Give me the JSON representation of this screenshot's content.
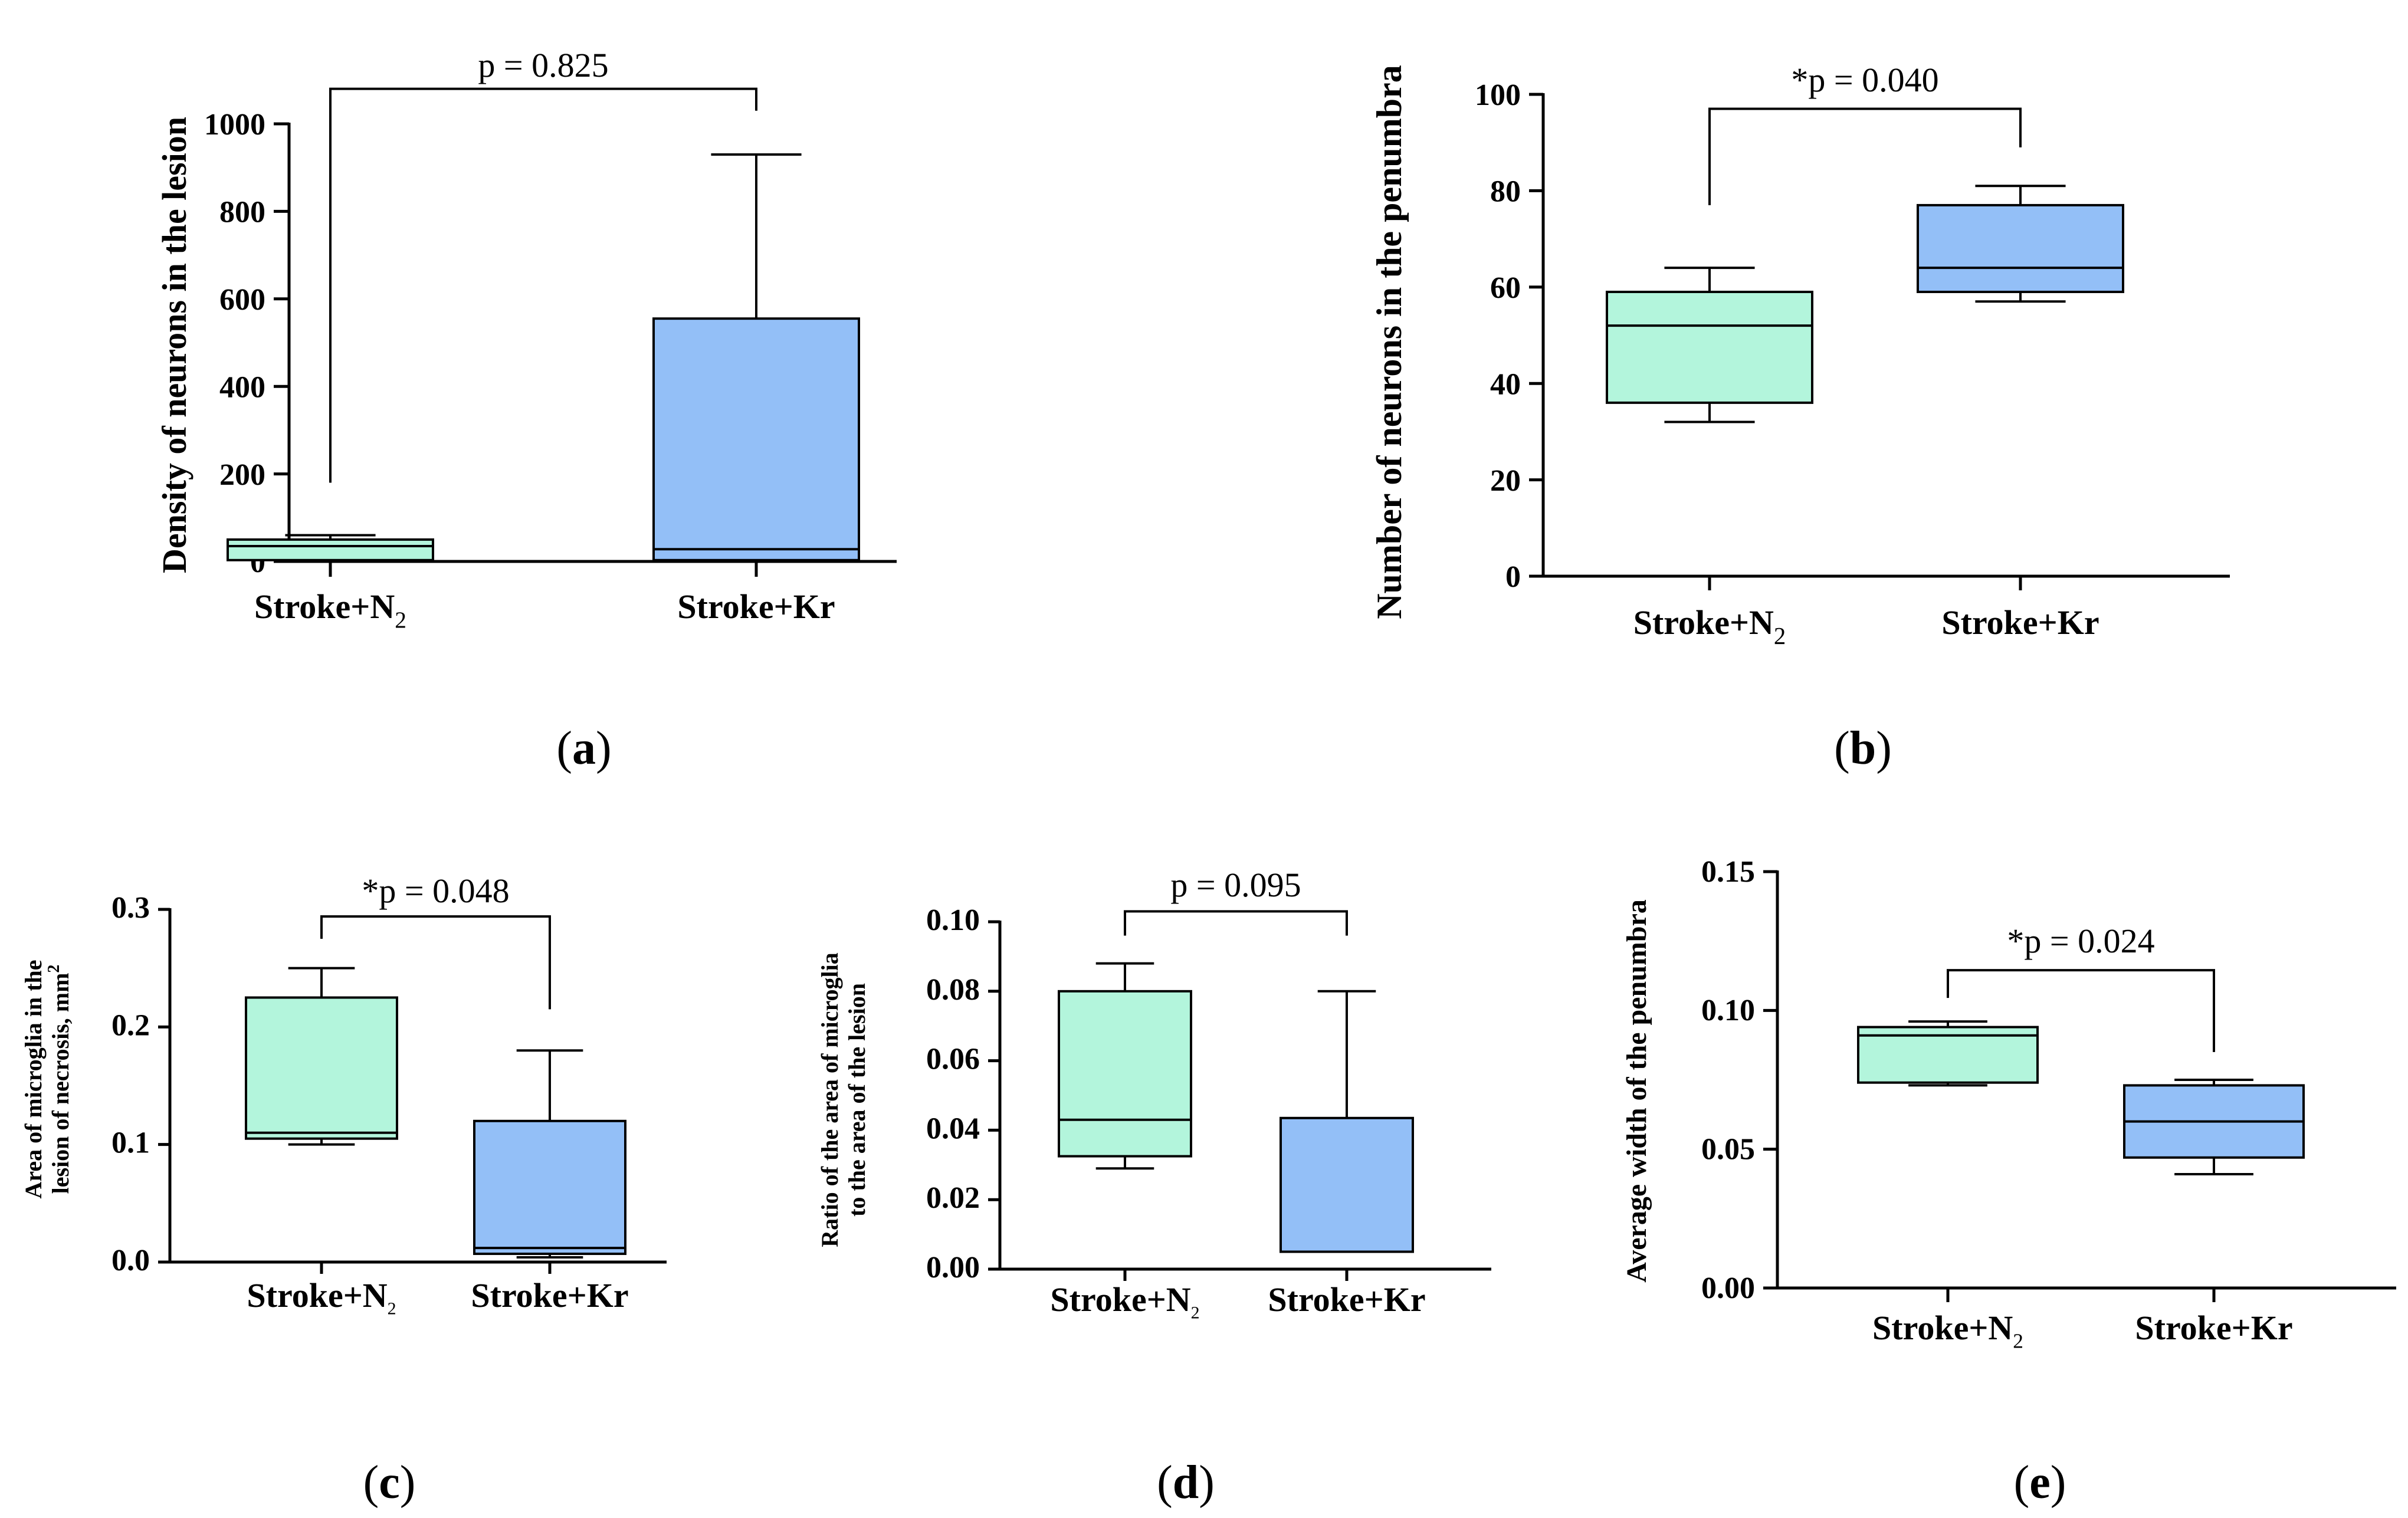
{
  "colors": {
    "n2": "#b3f5dc",
    "kr": "#93bff7"
  },
  "chart_data": [
    {
      "id": "a",
      "type": "box",
      "panel_label": "(a)",
      "categories": [
        "Stroke+N",
        "Stroke+Kr"
      ],
      "category_subscripts": [
        "2",
        ""
      ],
      "ylabel": "Density of neurons in the lesion",
      "ylim": [
        0,
        1000
      ],
      "yticks": [
        0,
        200,
        400,
        600,
        800,
        1000
      ],
      "ytick_labels": [
        "0",
        "200",
        "400",
        "600",
        "800",
        "1000"
      ],
      "series": [
        {
          "name": "Stroke+N2",
          "min": 3,
          "q1": 3,
          "median": 35,
          "q3": 50,
          "max": 60
        },
        {
          "name": "Stroke+Kr",
          "min": 3,
          "q1": 3,
          "median": 28,
          "q3": 555,
          "max": 930
        }
      ],
      "significance": {
        "text": "p = 0.825",
        "bracket_y": 1080,
        "left_drop_to": 180,
        "right_drop_to": 1030
      }
    },
    {
      "id": "b",
      "type": "box",
      "panel_label": "(b)",
      "categories": [
        "Stroke+N",
        "Stroke+Kr"
      ],
      "category_subscripts": [
        "2",
        ""
      ],
      "ylabel": "Number of neurons in the penumbra",
      "ylim": [
        0,
        100
      ],
      "yticks": [
        0,
        20,
        40,
        60,
        80,
        100
      ],
      "ytick_labels": [
        "0",
        "20",
        "40",
        "60",
        "80",
        "100"
      ],
      "series": [
        {
          "name": "Stroke+N2",
          "min": 32,
          "q1": 36,
          "median": 52,
          "q3": 59,
          "max": 64
        },
        {
          "name": "Stroke+Kr",
          "min": 57,
          "q1": 59,
          "median": 64,
          "q3": 77,
          "max": 81
        }
      ],
      "significance": {
        "text": "*p = 0.040",
        "bracket_y": 97,
        "left_drop_to": 77,
        "right_drop_to": 89
      }
    },
    {
      "id": "c",
      "type": "box",
      "panel_label": "(c)",
      "categories": [
        "Stroke+N",
        "Stroke+Kr"
      ],
      "category_subscripts": [
        "2",
        ""
      ],
      "ylabel_lines": [
        "Area of microglia in the",
        "lesion of necrosis, mm"
      ],
      "ylabel_superscript": "2",
      "ylim": [
        0,
        0.3
      ],
      "yticks": [
        0,
        0.1,
        0.2,
        0.3
      ],
      "ytick_labels": [
        "0.0",
        "0.1",
        "0.2",
        "0.3"
      ],
      "series": [
        {
          "name": "Stroke+N2",
          "min": 0.1,
          "q1": 0.105,
          "median": 0.11,
          "q3": 0.225,
          "max": 0.25
        },
        {
          "name": "Stroke+Kr",
          "min": 0.004,
          "q1": 0.007,
          "median": 0.012,
          "q3": 0.12,
          "max": 0.18
        }
      ],
      "significance": {
        "text": "*p = 0.048",
        "bracket_y": 0.294,
        "left_drop_to": 0.275,
        "right_drop_to": 0.215
      }
    },
    {
      "id": "d",
      "type": "box",
      "panel_label": "(d)",
      "categories": [
        "Stroke+N",
        "Stroke+Kr"
      ],
      "category_subscripts": [
        "2",
        ""
      ],
      "ylabel_lines": [
        "Ratio of the area of microglia",
        "to the area of the lesion"
      ],
      "ylim": [
        0,
        0.1
      ],
      "yticks": [
        0,
        0.02,
        0.04,
        0.06,
        0.08,
        0.1
      ],
      "ytick_labels": [
        "0.00",
        "0.02",
        "0.04",
        "0.06",
        "0.08",
        "0.10"
      ],
      "series": [
        {
          "name": "Stroke+N2",
          "min": 0.029,
          "q1": 0.0325,
          "median": 0.043,
          "q3": 0.08,
          "max": 0.088
        },
        {
          "name": "Stroke+Kr",
          "min": 0.005,
          "q1": 0.005,
          "median": 0.005,
          "q3": 0.0435,
          "max": 0.08
        }
      ],
      "significance": {
        "text": "p = 0.095",
        "bracket_y": 0.103,
        "left_drop_to": 0.096,
        "right_drop_to": 0.096
      }
    },
    {
      "id": "e",
      "type": "box",
      "panel_label": "(e)",
      "categories": [
        "Stroke+N",
        "Stroke+Kr"
      ],
      "category_subscripts": [
        "2",
        ""
      ],
      "ylabel": "Average width of the penumbra",
      "ylim": [
        0,
        0.15
      ],
      "yticks": [
        0,
        0.05,
        0.1,
        0.15
      ],
      "ytick_labels": [
        "0.00",
        "0.05",
        "0.10",
        "0.15"
      ],
      "series": [
        {
          "name": "Stroke+N2",
          "min": 0.073,
          "q1": 0.074,
          "median": 0.091,
          "q3": 0.094,
          "max": 0.096
        },
        {
          "name": "Stroke+Kr",
          "min": 0.041,
          "q1": 0.047,
          "median": 0.06,
          "q3": 0.073,
          "max": 0.075
        }
      ],
      "significance": {
        "text": "*p = 0.024",
        "bracket_y": 0.1145,
        "left_drop_to": 0.1045,
        "right_drop_to": 0.085
      }
    }
  ]
}
